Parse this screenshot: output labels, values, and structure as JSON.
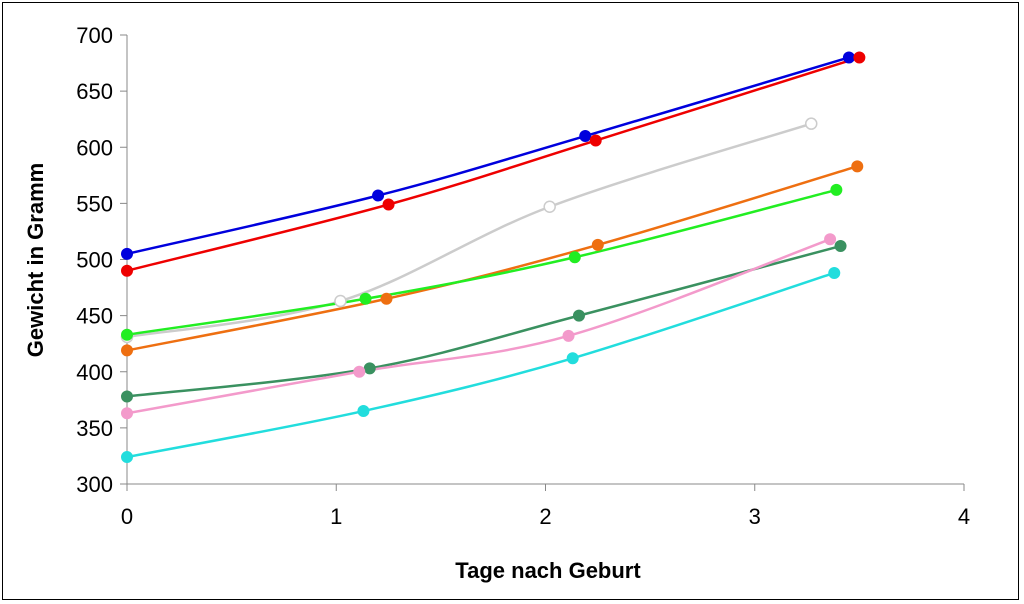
{
  "chart_data": {
    "type": "line",
    "title": "",
    "xlabel": "Tage nach Geburt",
    "ylabel": "Gewicht in Gramm",
    "xlim": [
      0,
      4
    ],
    "ylim": [
      300,
      700
    ],
    "xticks": [
      "0",
      "1",
      "2",
      "3",
      "4"
    ],
    "yticks": [
      "300",
      "350",
      "400",
      "450",
      "500",
      "550",
      "600",
      "650",
      "700"
    ],
    "grid": false,
    "legend": "none",
    "series": [
      {
        "color": "#0000dd",
        "marker": "filled",
        "x": [
          0,
          1.2,
          2.19,
          3.45
        ],
        "y": [
          505,
          557,
          610,
          680
        ]
      },
      {
        "color": "#ee0000",
        "marker": "filled",
        "x": [
          0,
          1.25,
          2.24,
          3.5
        ],
        "y": [
          490,
          549,
          606,
          680
        ]
      },
      {
        "color": "#cccccc",
        "marker": "hollow",
        "x": [
          0,
          1.02,
          2.02,
          3.27
        ],
        "y": [
          431,
          463,
          547,
          621
        ]
      },
      {
        "color": "#ee6f11",
        "marker": "filled",
        "x": [
          0,
          1.24,
          2.25,
          3.49
        ],
        "y": [
          419,
          465,
          513,
          583
        ]
      },
      {
        "color": "#22ee22",
        "marker": "filled",
        "x": [
          0,
          1.14,
          2.14,
          3.39
        ],
        "y": [
          433,
          465,
          502,
          562
        ]
      },
      {
        "color": "#3a9160",
        "marker": "filled",
        "x": [
          0,
          1.16,
          2.16,
          3.41
        ],
        "y": [
          378,
          403,
          450,
          512
        ]
      },
      {
        "color": "#f39acb",
        "marker": "filled",
        "x": [
          0,
          1.11,
          2.11,
          3.36
        ],
        "y": [
          363,
          400,
          432,
          518
        ]
      },
      {
        "color": "#22dddd",
        "marker": "filled",
        "x": [
          0,
          1.13,
          2.13,
          3.38
        ],
        "y": [
          324,
          365,
          412,
          488
        ]
      }
    ]
  }
}
